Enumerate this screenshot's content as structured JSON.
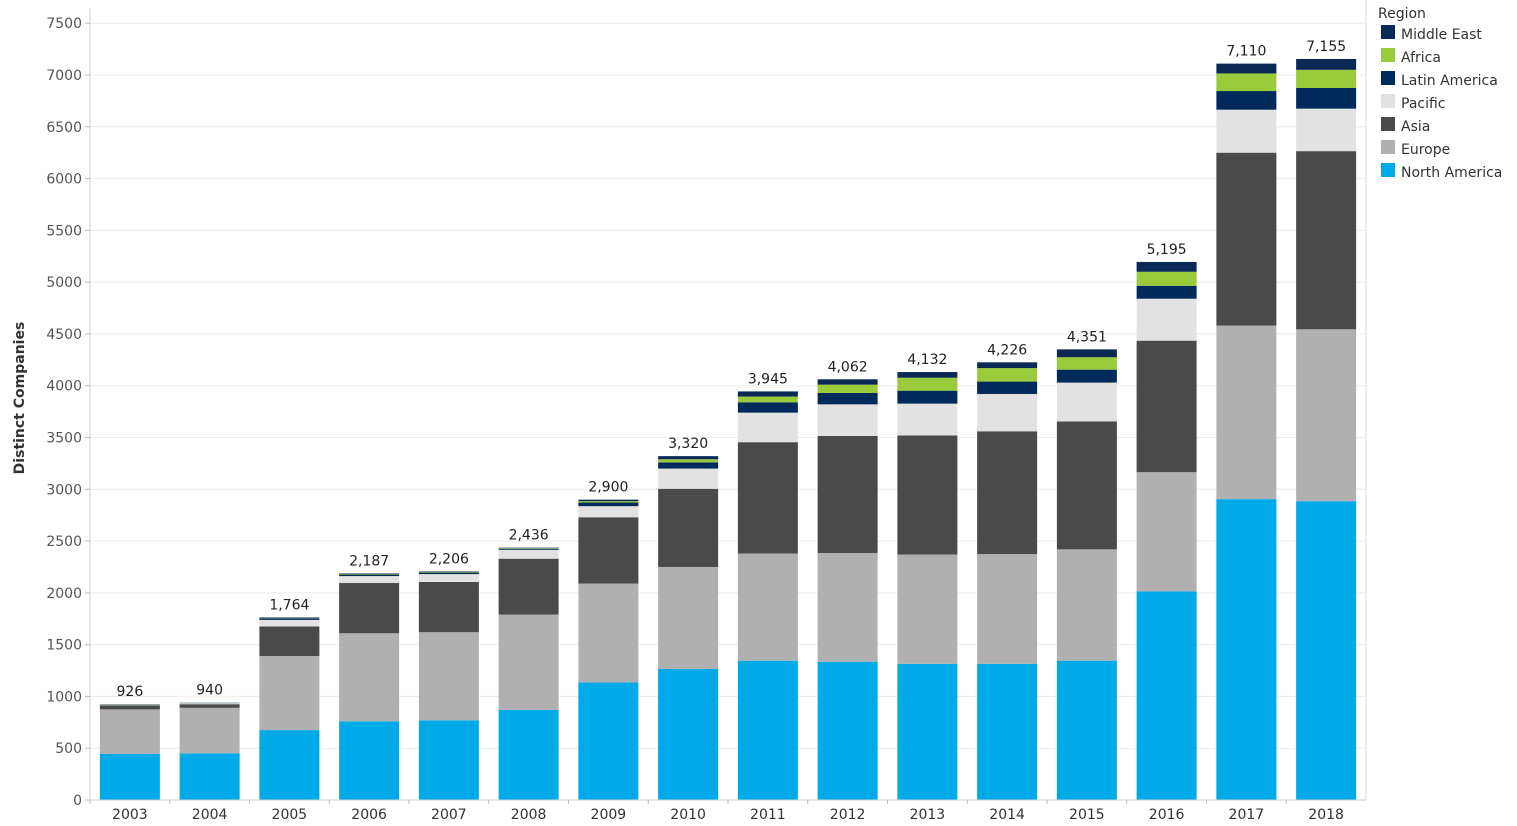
{
  "chart_data": {
    "type": "bar",
    "stacked": true,
    "ylabel": "Distinct Companies",
    "xlabel": "",
    "ylim": [
      0,
      7500
    ],
    "yticks": [
      0,
      500,
      1000,
      1500,
      2000,
      2500,
      3000,
      3500,
      4000,
      4500,
      5000,
      5500,
      6000,
      6500,
      7000,
      7500
    ],
    "grid": "horizontal",
    "legend": {
      "title": "Region",
      "placement": "right"
    },
    "categories": [
      "2003",
      "2004",
      "2005",
      "2006",
      "2007",
      "2008",
      "2009",
      "2010",
      "2011",
      "2012",
      "2013",
      "2014",
      "2015",
      "2016",
      "2017",
      "2018"
    ],
    "totals": [
      "926",
      "940",
      "1,764",
      "2,187",
      "2,206",
      "2,436",
      "2,900",
      "3,320",
      "3,945",
      "4,062",
      "4,132",
      "4,226",
      "4,351",
      "5,195",
      "7,110",
      "7,155"
    ],
    "series": [
      {
        "name": "North America",
        "color": "#00a9e8",
        "values": [
          445,
          450,
          675,
          760,
          770,
          870,
          1135,
          1265,
          1345,
          1335,
          1315,
          1315,
          1345,
          2015,
          2905,
          2885
        ]
      },
      {
        "name": "Europe",
        "color": "#b0b0b0",
        "values": [
          430,
          440,
          715,
          850,
          850,
          920,
          955,
          985,
          1035,
          1050,
          1055,
          1060,
          1075,
          1150,
          1675,
          1660
        ]
      },
      {
        "name": "Asia",
        "color": "#4a4a4a",
        "values": [
          40,
          35,
          285,
          485,
          485,
          540,
          640,
          755,
          1075,
          1130,
          1150,
          1185,
          1235,
          1270,
          1670,
          1720
        ]
      },
      {
        "name": "Pacific",
        "color": "#e2e2e2",
        "values": [
          6,
          10,
          64,
          67,
          76,
          86,
          107,
          195,
          285,
          305,
          307,
          360,
          375,
          405,
          415,
          410
        ]
      },
      {
        "name": "Latin America",
        "color": "#002a5c",
        "values": [
          3,
          3,
          16,
          15,
          15,
          10,
          35,
          60,
          100,
          110,
          125,
          120,
          125,
          125,
          180,
          200
        ]
      },
      {
        "name": "Africa",
        "color": "#9acb3b",
        "values": [
          1,
          1,
          4,
          5,
          5,
          5,
          13,
          30,
          55,
          80,
          125,
          130,
          120,
          135,
          170,
          175
        ]
      },
      {
        "name": "Middle East",
        "color": "#0a2a55",
        "values": [
          1,
          1,
          5,
          5,
          5,
          5,
          15,
          30,
          50,
          52,
          55,
          56,
          76,
          95,
          95,
          105
        ]
      }
    ]
  }
}
